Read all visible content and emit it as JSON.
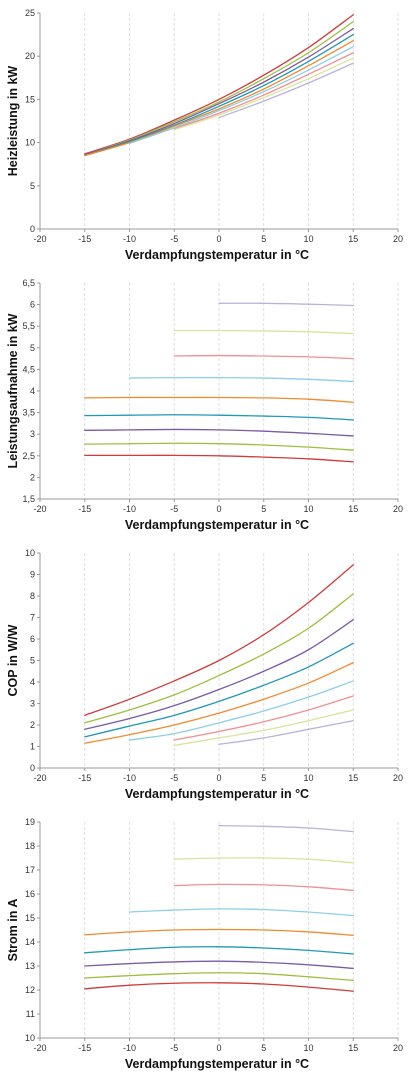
{
  "chart_data": [
    {
      "type": "line",
      "xlabel": "Verdampfungstemperatur in °C",
      "ylabel": "Heizleistung in kW",
      "xlim": [
        -20,
        20
      ],
      "ylim": [
        0,
        25
      ],
      "xticks": [
        "-20",
        "-15",
        "-10",
        "-5",
        "0",
        "5",
        "10",
        "15",
        "20"
      ],
      "yticks": [
        "0",
        "5",
        "10",
        "15",
        "20",
        "25"
      ],
      "grid": "vertical",
      "series": [
        {
          "color": "#d03b3b",
          "x": [
            -15,
            -10,
            -5,
            0,
            5,
            10,
            15
          ],
          "values": [
            8.7,
            10.4,
            12.6,
            15.0,
            17.8,
            21.0,
            24.8
          ]
        },
        {
          "color": "#9dbf3f",
          "x": [
            -15,
            -10,
            -5,
            0,
            5,
            10,
            15
          ],
          "values": [
            8.6,
            10.3,
            12.4,
            14.7,
            17.4,
            20.4,
            24.0
          ]
        },
        {
          "color": "#7b5aa6",
          "x": [
            -15,
            -10,
            -5,
            0,
            5,
            10,
            15
          ],
          "values": [
            8.6,
            10.2,
            12.2,
            14.5,
            17.0,
            19.9,
            23.2
          ]
        },
        {
          "color": "#1f98b8",
          "x": [
            -15,
            -10,
            -5,
            0,
            5,
            10,
            15
          ],
          "values": [
            8.5,
            10.1,
            12.0,
            14.2,
            16.6,
            19.4,
            22.5
          ]
        },
        {
          "color": "#f08a2c",
          "x": [
            -15,
            -10,
            -5,
            0,
            5,
            10,
            15
          ],
          "values": [
            8.5,
            10.0,
            11.9,
            13.9,
            16.2,
            18.9,
            21.8
          ]
        },
        {
          "color": "#8ccfe6",
          "x": [
            -10,
            -5,
            0,
            5,
            10,
            15
          ],
          "values": [
            9.9,
            11.7,
            13.7,
            15.9,
            18.4,
            21.1
          ]
        },
        {
          "color": "#f08f94",
          "x": [
            -5,
            0,
            5,
            10,
            15
          ],
          "values": [
            11.6,
            13.4,
            15.5,
            17.9,
            20.4
          ]
        },
        {
          "color": "#d8e59a",
          "x": [
            -5,
            0,
            5,
            10,
            15
          ],
          "values": [
            11.5,
            13.2,
            15.2,
            17.4,
            19.8
          ]
        },
        {
          "color": "#b9b3dc",
          "x": [
            0,
            5,
            10,
            15
          ],
          "values": [
            12.9,
            14.8,
            16.9,
            19.2
          ]
        }
      ]
    },
    {
      "type": "line",
      "xlabel": "Verdampfungstemperatur in °C",
      "ylabel": "Leistungsaufnahme in kW",
      "xlim": [
        -20,
        20
      ],
      "ylim": [
        1.5,
        6.5
      ],
      "xticks": [
        "-20",
        "-15",
        "-10",
        "-5",
        "0",
        "5",
        "10",
        "15",
        "20"
      ],
      "yticks": [
        "1,5",
        "2",
        "2,5",
        "3",
        "3,5",
        "4",
        "4,5",
        "5",
        "5,5",
        "6",
        "6,5"
      ],
      "grid": "vertical",
      "series": [
        {
          "color": "#d03b3b",
          "x": [
            -15,
            -10,
            -5,
            0,
            5,
            10,
            15
          ],
          "values": [
            2.51,
            2.51,
            2.51,
            2.5,
            2.47,
            2.43,
            2.36
          ]
        },
        {
          "color": "#9dbf3f",
          "x": [
            -15,
            -10,
            -5,
            0,
            5,
            10,
            15
          ],
          "values": [
            2.77,
            2.78,
            2.79,
            2.78,
            2.75,
            2.7,
            2.63
          ]
        },
        {
          "color": "#7b5aa6",
          "x": [
            -15,
            -10,
            -5,
            0,
            5,
            10,
            15
          ],
          "values": [
            3.09,
            3.1,
            3.11,
            3.1,
            3.07,
            3.02,
            2.96
          ]
        },
        {
          "color": "#1f98b8",
          "x": [
            -15,
            -10,
            -5,
            0,
            5,
            10,
            15
          ],
          "values": [
            3.43,
            3.44,
            3.45,
            3.44,
            3.42,
            3.39,
            3.33
          ]
        },
        {
          "color": "#f08a2c",
          "x": [
            -15,
            -10,
            -5,
            0,
            5,
            10,
            15
          ],
          "values": [
            3.84,
            3.85,
            3.85,
            3.85,
            3.84,
            3.81,
            3.74
          ]
        },
        {
          "color": "#8ccfe6",
          "x": [
            -10,
            -5,
            0,
            5,
            10,
            15
          ],
          "values": [
            4.3,
            4.31,
            4.31,
            4.3,
            4.27,
            4.22
          ]
        },
        {
          "color": "#f08f94",
          "x": [
            -5,
            0,
            5,
            10,
            15
          ],
          "values": [
            4.81,
            4.82,
            4.81,
            4.79,
            4.75
          ]
        },
        {
          "color": "#d8e59a",
          "x": [
            -5,
            0,
            5,
            10,
            15
          ],
          "values": [
            5.4,
            5.4,
            5.39,
            5.37,
            5.33
          ]
        },
        {
          "color": "#b9b3dc",
          "x": [
            0,
            5,
            10,
            15
          ],
          "values": [
            6.03,
            6.03,
            6.01,
            5.98
          ]
        }
      ]
    },
    {
      "type": "line",
      "xlabel": "Verdampfungstemperatur in °C",
      "ylabel": "COP in W/W",
      "xlim": [
        -20,
        20
      ],
      "ylim": [
        0,
        10
      ],
      "xticks": [
        "-20",
        "-15",
        "-10",
        "-5",
        "0",
        "5",
        "10",
        "15",
        "20"
      ],
      "yticks": [
        "0",
        "1",
        "2",
        "3",
        "4",
        "5",
        "6",
        "7",
        "8",
        "9",
        "10"
      ],
      "grid": "vertical",
      "series": [
        {
          "color": "#d03b3b",
          "x": [
            -15,
            -10,
            -5,
            0,
            5,
            10,
            15
          ],
          "values": [
            2.45,
            3.2,
            4.05,
            5.0,
            6.2,
            7.7,
            9.45
          ]
        },
        {
          "color": "#9dbf3f",
          "x": [
            -15,
            -10,
            -5,
            0,
            5,
            10,
            15
          ],
          "values": [
            2.1,
            2.7,
            3.4,
            4.3,
            5.3,
            6.5,
            8.1
          ]
        },
        {
          "color": "#7b5aa6",
          "x": [
            -15,
            -10,
            -5,
            0,
            5,
            10,
            15
          ],
          "values": [
            1.8,
            2.3,
            2.9,
            3.65,
            4.5,
            5.5,
            6.9
          ]
        },
        {
          "color": "#1f98b8",
          "x": [
            -15,
            -10,
            -5,
            0,
            5,
            10,
            15
          ],
          "values": [
            1.45,
            1.95,
            2.45,
            3.1,
            3.85,
            4.7,
            5.8
          ]
        },
        {
          "color": "#f08a2c",
          "x": [
            -15,
            -10,
            -5,
            0,
            5,
            10,
            15
          ],
          "values": [
            1.15,
            1.55,
            2.0,
            2.55,
            3.2,
            3.95,
            4.9
          ]
        },
        {
          "color": "#8ccfe6",
          "x": [
            -10,
            -5,
            0,
            5,
            10,
            15
          ],
          "values": [
            1.3,
            1.6,
            2.1,
            2.65,
            3.3,
            4.05
          ]
        },
        {
          "color": "#f08f94",
          "x": [
            -5,
            0,
            5,
            10,
            15
          ],
          "values": [
            1.3,
            1.7,
            2.15,
            2.7,
            3.35
          ]
        },
        {
          "color": "#d8e59a",
          "x": [
            -5,
            0,
            5,
            10,
            15
          ],
          "values": [
            1.05,
            1.4,
            1.75,
            2.2,
            2.7
          ]
        },
        {
          "color": "#b9b3dc",
          "x": [
            0,
            5,
            10,
            15
          ],
          "values": [
            1.1,
            1.4,
            1.8,
            2.2
          ]
        }
      ]
    },
    {
      "type": "line",
      "xlabel": "Verdampfungstemperatur in °C",
      "ylabel": "Strom in A",
      "xlim": [
        -20,
        20
      ],
      "ylim": [
        10,
        19
      ],
      "xticks": [
        "-20",
        "-15",
        "-10",
        "-5",
        "0",
        "5",
        "10",
        "15",
        "20"
      ],
      "yticks": [
        "10",
        "11",
        "12",
        "13",
        "14",
        "15",
        "16",
        "17",
        "18",
        "19"
      ],
      "grid": "vertical",
      "series": [
        {
          "color": "#d03b3b",
          "x": [
            -15,
            -10,
            -5,
            0,
            5,
            10,
            15
          ],
          "values": [
            12.05,
            12.2,
            12.28,
            12.3,
            12.25,
            12.12,
            11.95
          ]
        },
        {
          "color": "#9dbf3f",
          "x": [
            -15,
            -10,
            -5,
            0,
            5,
            10,
            15
          ],
          "values": [
            12.5,
            12.6,
            12.68,
            12.72,
            12.68,
            12.55,
            12.4
          ]
        },
        {
          "color": "#7b5aa6",
          "x": [
            -15,
            -10,
            -5,
            0,
            5,
            10,
            15
          ],
          "values": [
            13.0,
            13.1,
            13.17,
            13.2,
            13.15,
            13.05,
            12.9
          ]
        },
        {
          "color": "#1f98b8",
          "x": [
            -15,
            -10,
            -5,
            0,
            5,
            10,
            15
          ],
          "values": [
            13.55,
            13.68,
            13.78,
            13.8,
            13.75,
            13.65,
            13.5
          ]
        },
        {
          "color": "#f08a2c",
          "x": [
            -15,
            -10,
            -5,
            0,
            5,
            10,
            15
          ],
          "values": [
            14.3,
            14.42,
            14.5,
            14.52,
            14.5,
            14.42,
            14.28
          ]
        },
        {
          "color": "#8ccfe6",
          "x": [
            -10,
            -5,
            0,
            5,
            10,
            15
          ],
          "values": [
            15.25,
            15.33,
            15.38,
            15.35,
            15.25,
            15.1
          ]
        },
        {
          "color": "#f08f94",
          "x": [
            -5,
            0,
            5,
            10,
            15
          ],
          "values": [
            16.35,
            16.4,
            16.38,
            16.3,
            16.15
          ]
        },
        {
          "color": "#d8e59a",
          "x": [
            -5,
            0,
            5,
            10,
            15
          ],
          "values": [
            17.45,
            17.5,
            17.5,
            17.45,
            17.3
          ]
        },
        {
          "color": "#b9b3dc",
          "x": [
            0,
            5,
            10,
            15
          ],
          "values": [
            18.85,
            18.82,
            18.75,
            18.6
          ]
        }
      ]
    }
  ]
}
